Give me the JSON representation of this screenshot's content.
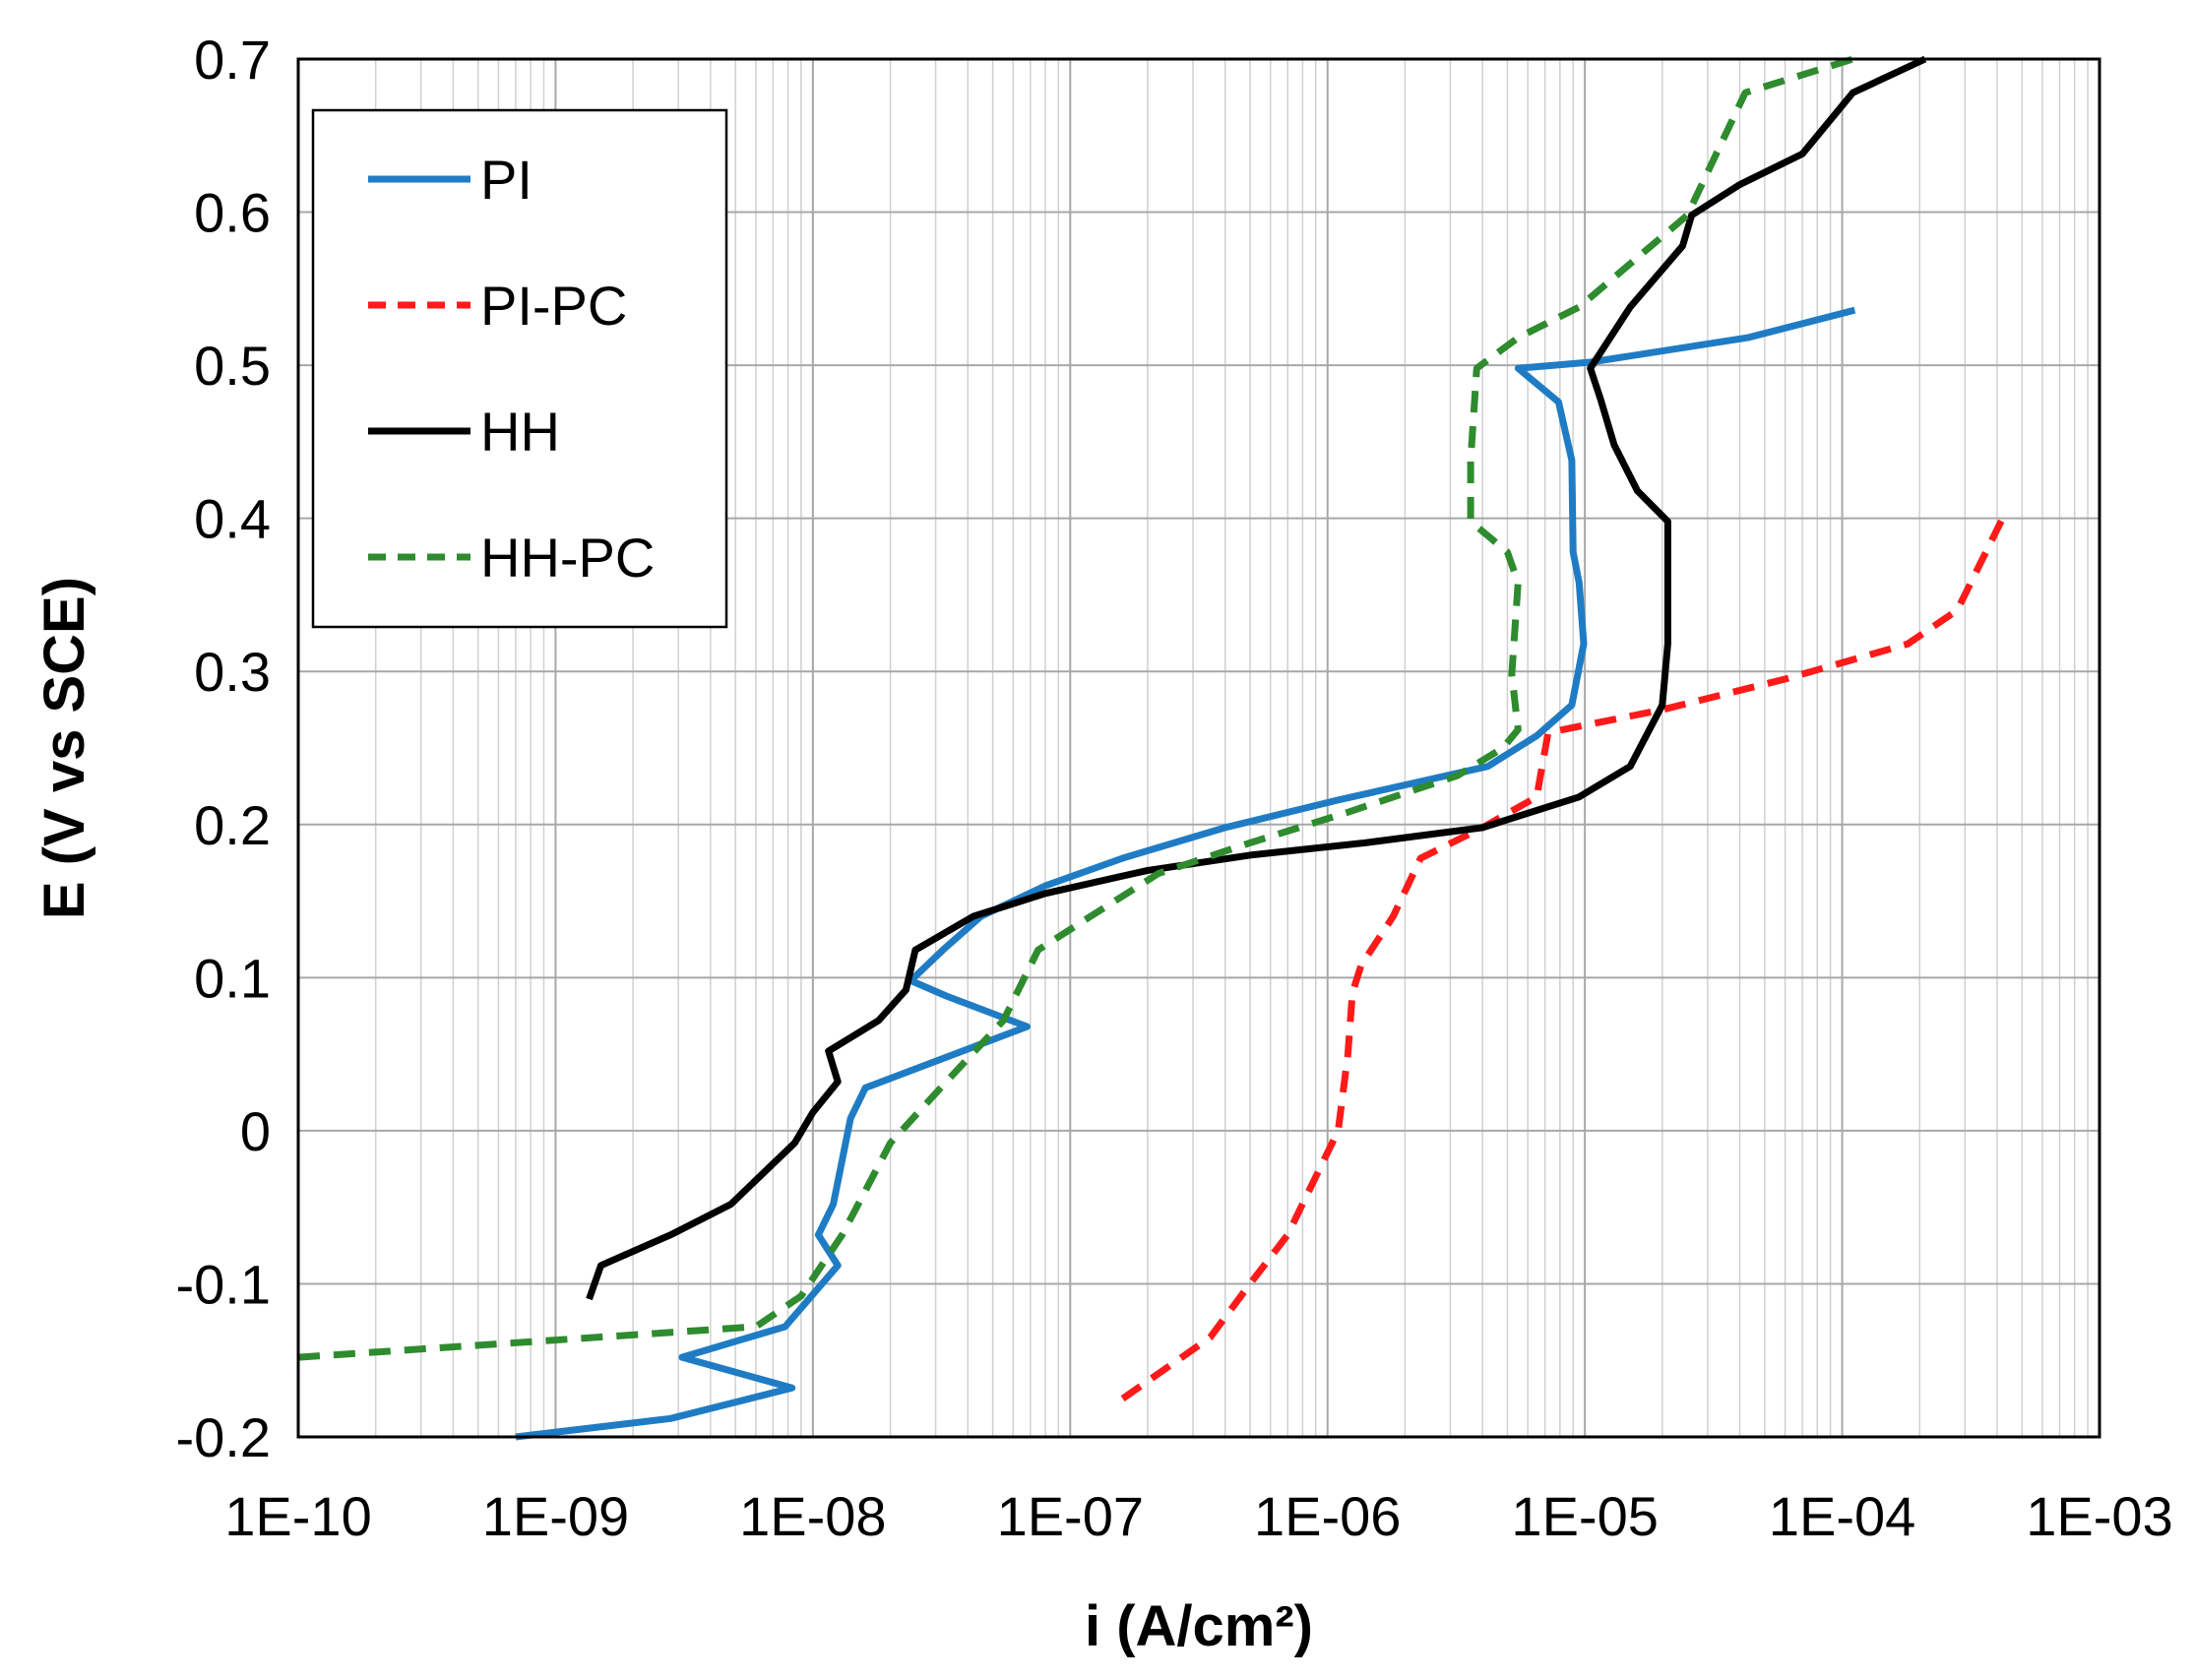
{
  "chart_data": {
    "type": "line",
    "title": "",
    "xlabel": "i (A/cm²)",
    "ylabel": "E (V vs SCE)",
    "x_scale": "log",
    "xlim": [
      1e-10,
      0.001
    ],
    "ylim": [
      -0.2,
      0.7
    ],
    "grid": true,
    "legend_position": "top-left",
    "x_tick_labels": [
      "1E-10",
      "1E-09",
      "1E-08",
      "1E-07",
      "1E-06",
      "1E-05",
      "1E-04",
      "1E-03"
    ],
    "y_tick_labels": [
      "0.7",
      "0.6",
      "0.5",
      "0.4",
      "0.3",
      "0.2",
      "0.1",
      "0",
      "-0.1",
      "-0.2"
    ],
    "series": [
      {
        "name": "PI",
        "color": "#1f7cc4",
        "dash": "solid",
        "points": [
          [
            7e-10,
            -0.2
          ],
          [
            2.8e-09,
            -0.188
          ],
          [
            8.3e-09,
            -0.168
          ],
          [
            3.1e-09,
            -0.148
          ],
          [
            7.8e-09,
            -0.128
          ],
          [
            1.25e-08,
            -0.088
          ],
          [
            1.05e-08,
            -0.068
          ],
          [
            1.2e-08,
            -0.048
          ],
          [
            1.4e-08,
            0.008
          ],
          [
            1.6e-08,
            0.028
          ],
          [
            6.8e-08,
            0.068
          ],
          [
            3.3e-08,
            0.088
          ],
          [
            2.4e-08,
            0.098
          ],
          [
            3.2e-08,
            0.118
          ],
          [
            4.5e-08,
            0.14
          ],
          [
            8e-08,
            0.16
          ],
          [
            1.6e-07,
            0.178
          ],
          [
            4e-07,
            0.198
          ],
          [
            1.1e-06,
            0.216
          ],
          [
            4.2e-06,
            0.238
          ],
          [
            6.5e-06,
            0.258
          ],
          [
            8.9e-06,
            0.278
          ],
          [
            9.9e-06,
            0.318
          ],
          [
            9.5e-06,
            0.358
          ],
          [
            9e-06,
            0.378
          ],
          [
            8.9e-06,
            0.438
          ],
          [
            7.9e-06,
            0.476
          ],
          [
            5.5e-06,
            0.498
          ],
          [
            1.05e-05,
            0.502
          ],
          [
            4.3e-05,
            0.518
          ],
          [
            0.000112,
            0.536
          ]
        ]
      },
      {
        "name": "PI-PC",
        "color": "#ff1a1a",
        "dash": "dashed",
        "points": [
          [
            1.6e-07,
            -0.175
          ],
          [
            3.5e-07,
            -0.135
          ],
          [
            5e-07,
            -0.1
          ],
          [
            7e-07,
            -0.068
          ],
          [
            9e-07,
            -0.03
          ],
          [
            1.1e-06,
            0.0
          ],
          [
            1.2e-06,
            0.05
          ],
          [
            1.25e-06,
            0.09
          ],
          [
            1.35e-06,
            0.108
          ],
          [
            1.8e-06,
            0.14
          ],
          [
            2.3e-06,
            0.178
          ],
          [
            4e-06,
            0.198
          ],
          [
            6.5e-06,
            0.218
          ],
          [
            7.2e-06,
            0.26
          ],
          [
            2e-05,
            0.275
          ],
          [
            6e-05,
            0.295
          ],
          [
            0.00018,
            0.318
          ],
          [
            0.00028,
            0.34
          ],
          [
            0.00042,
            0.4
          ]
        ]
      },
      {
        "name": "HH",
        "color": "#000000",
        "dash": "solid",
        "points": [
          [
            1.35e-09,
            -0.11
          ],
          [
            1.5e-09,
            -0.088
          ],
          [
            2.8e-09,
            -0.068
          ],
          [
            4.8e-09,
            -0.048
          ],
          [
            8.5e-09,
            -0.008
          ],
          [
            1e-08,
            0.012
          ],
          [
            1.25e-08,
            0.032
          ],
          [
            1.15e-08,
            0.052
          ],
          [
            1.8e-08,
            0.072
          ],
          [
            2.3e-08,
            0.092
          ],
          [
            2.5e-08,
            0.118
          ],
          [
            4.2e-08,
            0.14
          ],
          [
            8e-08,
            0.155
          ],
          [
            2e-07,
            0.17
          ],
          [
            5e-07,
            0.18
          ],
          [
            1.4e-06,
            0.188
          ],
          [
            4e-06,
            0.198
          ],
          [
            9.5e-06,
            0.218
          ],
          [
            1.5e-05,
            0.238
          ],
          [
            2e-05,
            0.278
          ],
          [
            2.1e-05,
            0.318
          ],
          [
            2.1e-05,
            0.398
          ],
          [
            1.6e-05,
            0.418
          ],
          [
            1.3e-05,
            0.448
          ],
          [
            1.15e-05,
            0.478
          ],
          [
            1.05e-05,
            0.498
          ],
          [
            1.5e-05,
            0.538
          ],
          [
            2.4e-05,
            0.578
          ],
          [
            2.6e-05,
            0.598
          ],
          [
            4e-05,
            0.618
          ],
          [
            7e-05,
            0.638
          ],
          [
            0.00011,
            0.678
          ],
          [
            0.00021,
            0.7
          ]
        ]
      },
      {
        "name": "HH-PC",
        "color": "#2e8b2e",
        "dash": "dashed",
        "points": [
          [
            1e-10,
            -0.148
          ],
          [
            6e-09,
            -0.128
          ],
          [
            9e-09,
            -0.108
          ],
          [
            1.3e-08,
            -0.068
          ],
          [
            1.5e-08,
            -0.048
          ],
          [
            2e-08,
            -0.008
          ],
          [
            3.3e-08,
            0.032
          ],
          [
            5.5e-08,
            0.072
          ],
          [
            7.5e-08,
            0.118
          ],
          [
            1.2e-07,
            0.14
          ],
          [
            2.2e-07,
            0.168
          ],
          [
            5e-07,
            0.188
          ],
          [
            1.2e-06,
            0.208
          ],
          [
            3.2e-06,
            0.232
          ],
          [
            4.8e-06,
            0.25
          ],
          [
            5.5e-06,
            0.262
          ],
          [
            5.2e-06,
            0.298
          ],
          [
            5.5e-06,
            0.358
          ],
          [
            5e-06,
            0.378
          ],
          [
            3.6e-06,
            0.398
          ],
          [
            3.6e-06,
            0.438
          ],
          [
            3.8e-06,
            0.498
          ],
          [
            5.5e-06,
            0.518
          ],
          [
            9.5e-06,
            0.538
          ],
          [
            2.5e-05,
            0.598
          ],
          [
            4.2e-05,
            0.678
          ],
          [
            0.00011,
            0.7
          ]
        ]
      }
    ]
  }
}
